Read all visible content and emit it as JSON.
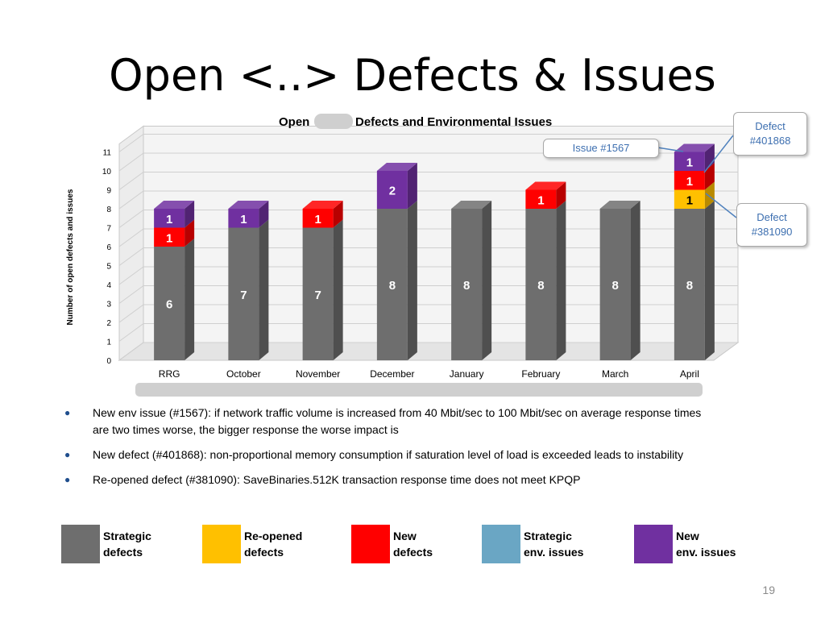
{
  "slide": {
    "title": "Open <..> Defects & Issues",
    "page_number": "19"
  },
  "callouts": {
    "issue_1567": "Issue #1567",
    "defect_401868": [
      "Defect",
      "#401868"
    ],
    "defect_381090": [
      "Defect",
      "#381090"
    ]
  },
  "bullets": [
    "New env issue (#1567): if network traffic volume is increased from 40 Mbit/sec to 100 Mbit/sec on average response times are two times worse, the bigger response the worse impact is",
    "New defect (#401868): non-proportional memory consumption if saturation level of load is exceeded leads to instability",
    "Re-opened defect (#381090): SaveBinaries.512K transaction response time does not meet KPQP"
  ],
  "legend": [
    {
      "line1": "Strategic",
      "line2": "defects",
      "color": "#6e6e6e"
    },
    {
      "line1": "Re-opened",
      "line2": "defects",
      "color": "#ffc000"
    },
    {
      "line1": "New",
      "line2": "defects",
      "color": "#ff0000"
    },
    {
      "line1": "Strategic",
      "line2": "env. issues",
      "color": "#6aa6c4"
    },
    {
      "line1": "New",
      "line2": "env. issues",
      "color": "#7030a0"
    }
  ],
  "chart_data": {
    "type": "bar",
    "stacked": true,
    "title_left": "Open",
    "title_right": "Defects and Environmental Issues",
    "ylabel": "Number of open defects and issues",
    "ylim": [
      0,
      11
    ],
    "yticks": [
      0,
      1,
      2,
      3,
      4,
      5,
      6,
      7,
      8,
      9,
      10,
      11
    ],
    "grid": true,
    "categories": [
      "RRG",
      "October",
      "November",
      "December",
      "January",
      "February",
      "March",
      "April"
    ],
    "series": [
      {
        "name": "Strategic defects",
        "color": "#6e6e6e",
        "values": [
          6,
          7,
          7,
          8,
          8,
          8,
          8,
          8
        ]
      },
      {
        "name": "Re-opened defects",
        "color": "#ffc000",
        "values": [
          0,
          0,
          0,
          0,
          0,
          0,
          0,
          1
        ]
      },
      {
        "name": "New defects",
        "color": "#ff0000",
        "values": [
          1,
          0,
          1,
          0,
          0,
          1,
          0,
          1
        ]
      },
      {
        "name": "Strategic env. issues",
        "color": "#6aa6c4",
        "values": [
          0,
          0,
          0,
          0,
          0,
          0,
          0,
          0
        ]
      },
      {
        "name": "New env. issues",
        "color": "#7030a0",
        "values": [
          1,
          1,
          0,
          2,
          0,
          0,
          0,
          1
        ]
      }
    ]
  }
}
